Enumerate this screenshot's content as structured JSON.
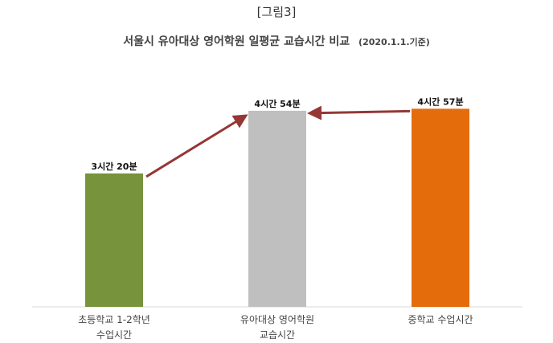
{
  "figure_label": "[그림3]",
  "chart_data": {
    "type": "bar",
    "title": "서울시 유아대상 영어학원 일평균 교습시간 비교",
    "subtitle": "(2020.1.1.기준)",
    "categories": [
      [
        "초등학교 1-2학년",
        "수업시간"
      ],
      [
        "유아대상 영어학원",
        "교습시간"
      ],
      [
        "중학교 수업시간"
      ]
    ],
    "values_minutes": [
      200,
      294,
      297
    ],
    "data_labels": [
      "3시간 20분",
      "4시간 54분",
      "4시간 57분"
    ],
    "colors": [
      "#77933c",
      "#bfbfbf",
      "#e46c0a"
    ],
    "annotations": [
      {
        "type": "arrow",
        "from": 0,
        "to": 1,
        "color": "#953735"
      },
      {
        "type": "arrow",
        "from": 2,
        "to": 1,
        "color": "#953735"
      }
    ],
    "ylim": [
      0,
      330
    ],
    "grid": false
  }
}
